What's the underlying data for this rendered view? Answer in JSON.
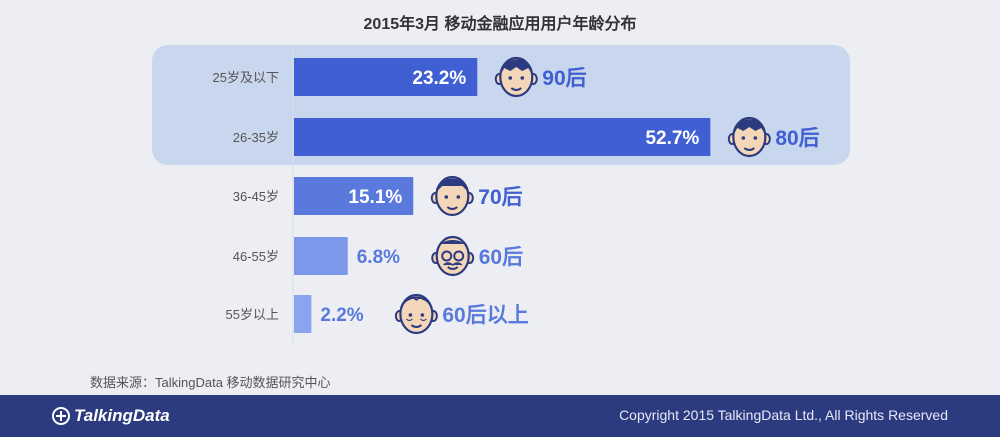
{
  "title": "2015年3月 移动金融应用用户年龄分布",
  "source": "数据来源：TalkingData 移动数据研究中心",
  "footer": {
    "logo_text": "TalkingData",
    "copyright": "Copyright 2015 TalkingData Ltd., All Rights Reserved"
  },
  "colors": {
    "highlight_panel": "#c9d7ee",
    "bar_colors": [
      "#3f5fd2",
      "#3f5fd2",
      "#5a79dd",
      "#7b98ea",
      "#8aa5ee"
    ],
    "bar_label_inside": "#ffffff",
    "bar_label_outside": "#5a79dd",
    "face_stroke": "#2c3b80",
    "face_fill": "#f4d7b8",
    "generation_label": "#3f5fd2"
  },
  "chart_data": {
    "type": "bar",
    "orientation": "horizontal",
    "title": "2015年3月 移动金融应用用户年龄分布",
    "categories": [
      "25岁及以下",
      "26-35岁",
      "36-45岁",
      "46-55岁",
      "55岁以上"
    ],
    "values": [
      23.2,
      52.7,
      15.1,
      6.8,
      2.2
    ],
    "value_labels": [
      "23.2%",
      "52.7%",
      "15.1%",
      "6.8%",
      "2.2%"
    ],
    "generation_labels": [
      "90后",
      "80后",
      "70后",
      "60后",
      "60后以上"
    ],
    "face_icons": [
      "young-face-icon",
      "young-adult-face-icon",
      "middle-age-face-icon",
      "mustache-glasses-face-icon",
      "elderly-face-icon"
    ],
    "highlighted_categories": [
      "25岁及以下",
      "26-35岁"
    ],
    "xlim": [
      0,
      60
    ],
    "grid": false,
    "legend": "none"
  }
}
